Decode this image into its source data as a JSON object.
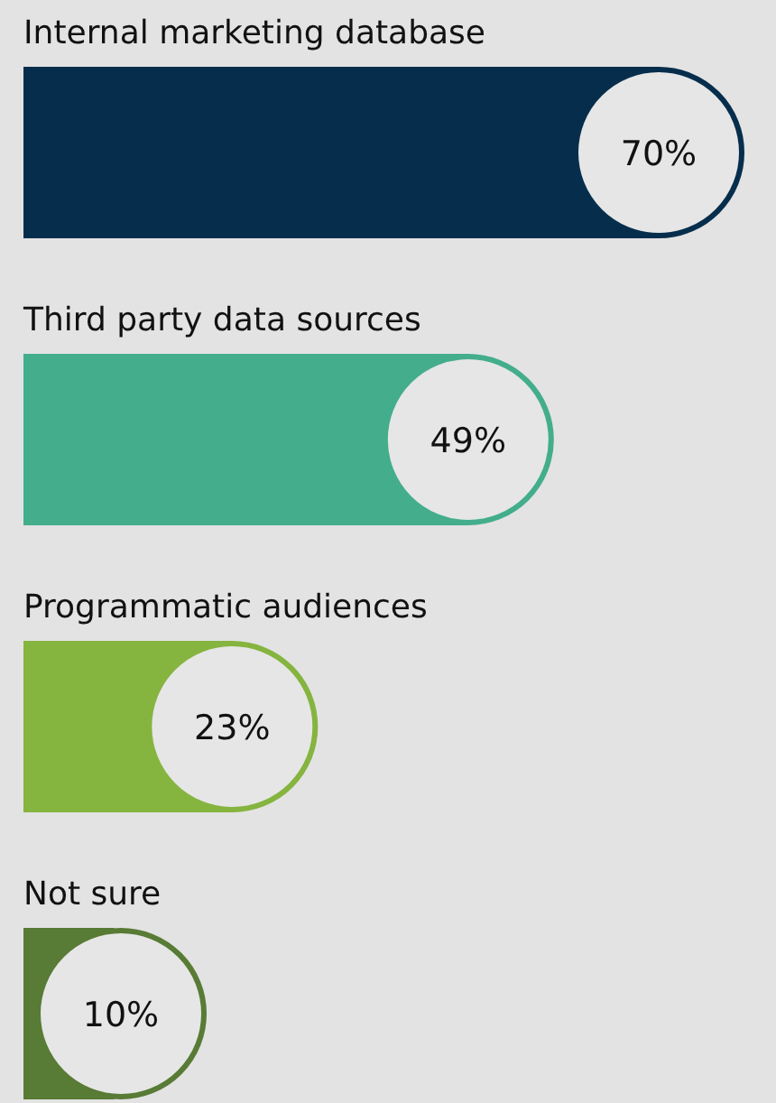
{
  "chart_data": {
    "type": "bar",
    "orientation": "horizontal",
    "categories": [
      "Internal marketing database",
      "Third party data sources",
      "Programmatic audiences",
      "Not sure"
    ],
    "values": [
      70,
      49,
      23,
      10
    ],
    "colors": [
      "#062e4c",
      "#43ad8c",
      "#85b43f",
      "#587b35"
    ],
    "value_labels": [
      "70%",
      "49%",
      "23%",
      "10%"
    ]
  }
}
